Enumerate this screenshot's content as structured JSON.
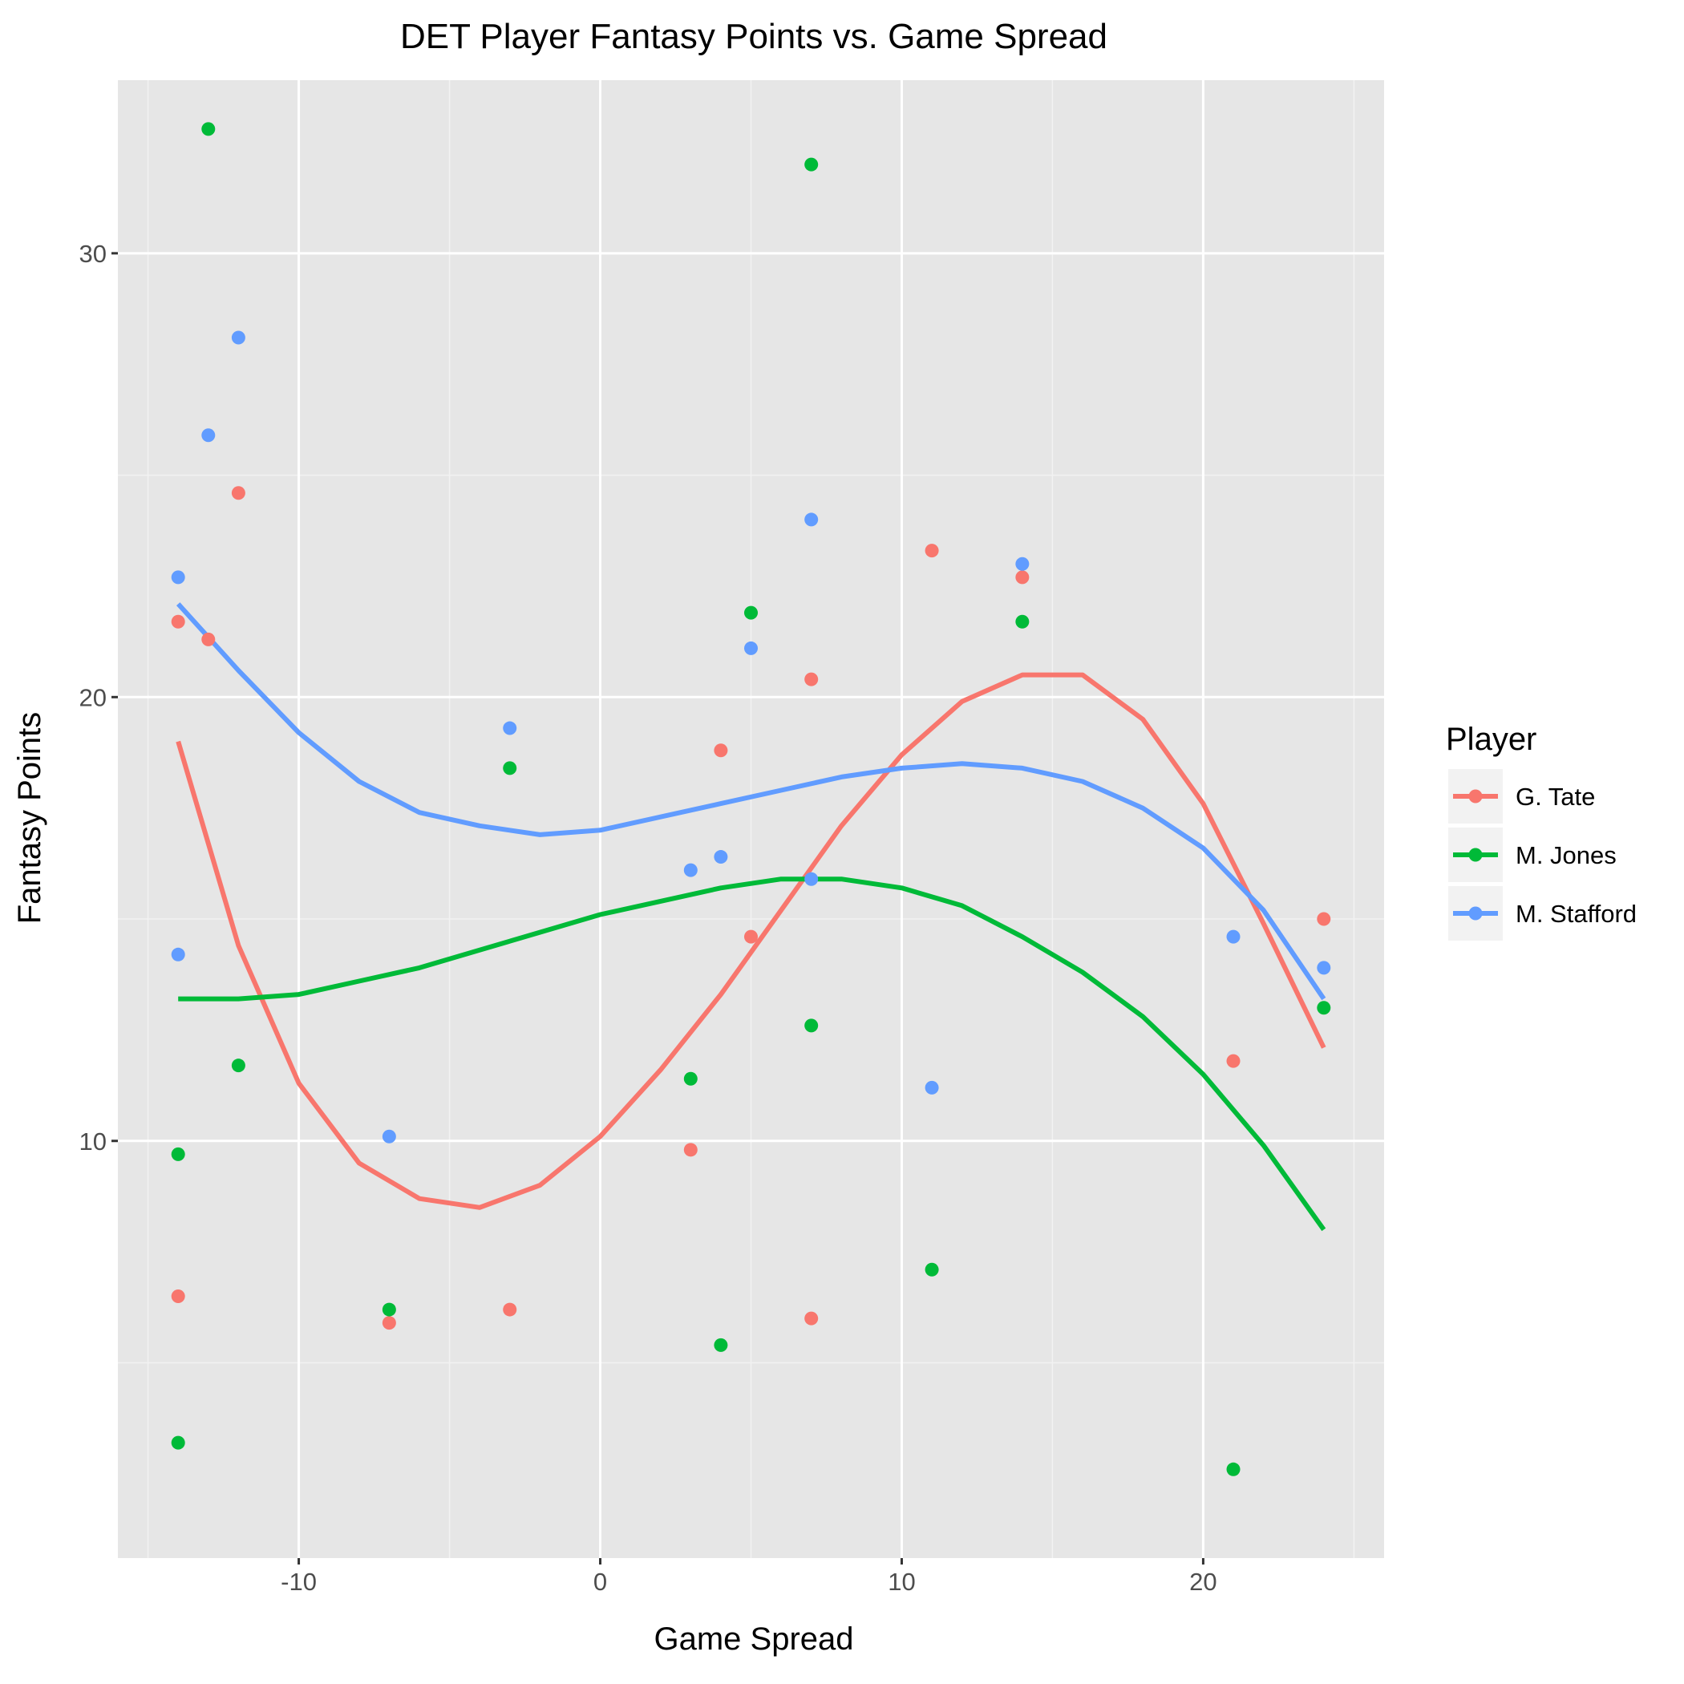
{
  "chart_data": {
    "type": "scatter",
    "title": "DET Player Fantasy Points vs. Game Spread",
    "xlabel": "Game Spread",
    "ylabel": "Fantasy Points",
    "xlim": [
      -16,
      26
    ],
    "ylim": [
      0.6,
      33.9
    ],
    "x_ticks": [
      -10,
      0,
      10,
      20
    ],
    "y_ticks": [
      10,
      20,
      30
    ],
    "grid": true,
    "legend": {
      "title": "Player",
      "position": "right"
    },
    "series": [
      {
        "name": "G. Tate",
        "color": "#F8766D",
        "points": [
          [
            -14,
            21.7
          ],
          [
            -14,
            6.5
          ],
          [
            -13,
            21.3
          ],
          [
            -12,
            24.6
          ],
          [
            -7,
            5.9
          ],
          [
            -3,
            6.2
          ],
          [
            3,
            9.8
          ],
          [
            4,
            18.8
          ],
          [
            5,
            14.6
          ],
          [
            7,
            20.4
          ],
          [
            7,
            6.0
          ],
          [
            11,
            23.3
          ],
          [
            14,
            22.7
          ],
          [
            21,
            11.8
          ],
          [
            24,
            15.0
          ]
        ],
        "trend": [
          [
            -14,
            19.0
          ],
          [
            -12,
            14.4
          ],
          [
            -10,
            11.3
          ],
          [
            -8,
            9.5
          ],
          [
            -6,
            8.7
          ],
          [
            -4,
            8.5
          ],
          [
            -2,
            9.0
          ],
          [
            0,
            10.1
          ],
          [
            2,
            11.6
          ],
          [
            4,
            13.3
          ],
          [
            6,
            15.2
          ],
          [
            8,
            17.1
          ],
          [
            10,
            18.7
          ],
          [
            12,
            19.9
          ],
          [
            14,
            20.5
          ],
          [
            16,
            20.5
          ],
          [
            18,
            19.5
          ],
          [
            20,
            17.6
          ],
          [
            22,
            14.9
          ],
          [
            24,
            12.1
          ]
        ]
      },
      {
        "name": "M. Jones",
        "color": "#00BA38",
        "points": [
          [
            -14,
            9.7
          ],
          [
            -14,
            3.2
          ],
          [
            -13,
            32.8
          ],
          [
            -12,
            11.7
          ],
          [
            -7,
            6.2
          ],
          [
            -3,
            18.4
          ],
          [
            3,
            11.4
          ],
          [
            4,
            5.4
          ],
          [
            5,
            21.9
          ],
          [
            7,
            32.0
          ],
          [
            7,
            12.6
          ],
          [
            11,
            7.1
          ],
          [
            14,
            21.7
          ],
          [
            21,
            2.6
          ],
          [
            24,
            13.0
          ]
        ],
        "trend": [
          [
            -14,
            13.2
          ],
          [
            -12,
            13.2
          ],
          [
            -10,
            13.3
          ],
          [
            -8,
            13.6
          ],
          [
            -6,
            13.9
          ],
          [
            -4,
            14.3
          ],
          [
            -2,
            14.7
          ],
          [
            0,
            15.1
          ],
          [
            2,
            15.4
          ],
          [
            4,
            15.7
          ],
          [
            6,
            15.9
          ],
          [
            8,
            15.9
          ],
          [
            10,
            15.7
          ],
          [
            12,
            15.3
          ],
          [
            14,
            14.6
          ],
          [
            16,
            13.8
          ],
          [
            18,
            12.8
          ],
          [
            20,
            11.5
          ],
          [
            22,
            9.9
          ],
          [
            24,
            8.0
          ]
        ]
      },
      {
        "name": "M. Stafford",
        "color": "#619CFF",
        "points": [
          [
            -14,
            22.7
          ],
          [
            -14,
            14.2
          ],
          [
            -13,
            25.9
          ],
          [
            -12,
            28.1
          ],
          [
            -7,
            10.1
          ],
          [
            -3,
            19.3
          ],
          [
            3,
            16.1
          ],
          [
            4,
            16.4
          ],
          [
            5,
            21.1
          ],
          [
            7,
            24.0
          ],
          [
            7,
            15.9
          ],
          [
            11,
            11.2
          ],
          [
            14,
            23.0
          ],
          [
            21,
            14.6
          ],
          [
            24,
            13.9
          ]
        ],
        "trend": [
          [
            -14,
            22.1
          ],
          [
            -12,
            20.6
          ],
          [
            -10,
            19.2
          ],
          [
            -8,
            18.1
          ],
          [
            -6,
            17.4
          ],
          [
            -4,
            17.1
          ],
          [
            -2,
            16.9
          ],
          [
            0,
            17.0
          ],
          [
            2,
            17.3
          ],
          [
            4,
            17.6
          ],
          [
            6,
            17.9
          ],
          [
            8,
            18.2
          ],
          [
            10,
            18.4
          ],
          [
            12,
            18.5
          ],
          [
            14,
            18.4
          ],
          [
            16,
            18.1
          ],
          [
            18,
            17.5
          ],
          [
            20,
            16.6
          ],
          [
            22,
            15.2
          ],
          [
            24,
            13.2
          ]
        ]
      }
    ]
  }
}
